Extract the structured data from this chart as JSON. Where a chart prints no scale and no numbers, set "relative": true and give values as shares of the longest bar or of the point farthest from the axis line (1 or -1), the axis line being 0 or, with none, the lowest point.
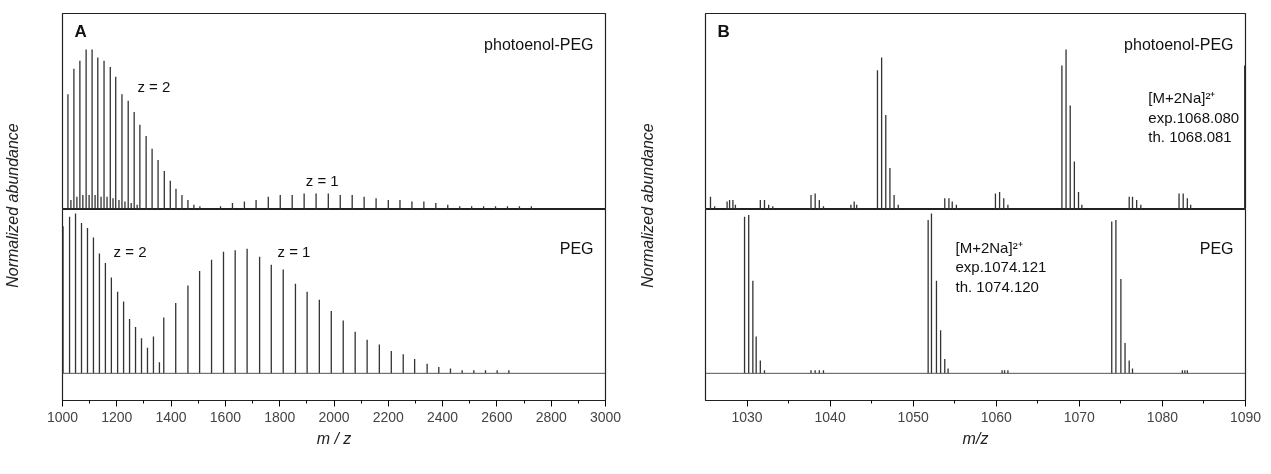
{
  "chart_data": [
    {
      "type": "bar",
      "title": "A",
      "ylabel": "Normalized abundance",
      "relative": true,
      "xlim": [
        1000,
        3000
      ],
      "tick_labels": false,
      "series": [
        {
          "name": "photoenol-PEG",
          "color": "#333333",
          "x": [
            1020,
            1031,
            1042,
            1053,
            1064,
            1075,
            1087,
            1098,
            1109,
            1120,
            1130,
            1142,
            1153,
            1164,
            1176,
            1186,
            1196,
            1208,
            1219,
            1230,
            1242,
            1253,
            1264,
            1275,
            1285,
            1308,
            1330,
            1352,
            1375,
            1397,
            1418,
            1440,
            1462,
            1484,
            1506,
            1582,
            1626,
            1670,
            1713,
            1758,
            1802,
            1846,
            1890,
            1934,
            1979,
            2023,
            2067,
            2111,
            2155,
            2200,
            2243,
            2287,
            2331,
            2375,
            2419,
            2463,
            2507,
            2551,
            2595,
            2639,
            2683,
            2727
          ],
          "values": [
            0.72,
            0.06,
            0.88,
            0.08,
            0.93,
            0.09,
            1,
            0.09,
            1,
            0.09,
            0.95,
            0.08,
            0.93,
            0.08,
            0.89,
            0.07,
            0.83,
            0.06,
            0.72,
            0.05,
            0.68,
            0.04,
            0.61,
            0.03,
            0.53,
            0.46,
            0.38,
            0.31,
            0.24,
            0.18,
            0.13,
            0.09,
            0.06,
            0.03,
            0.02,
            0.02,
            0.04,
            0.05,
            0.06,
            0.08,
            0.09,
            0.09,
            0.1,
            0.1,
            0.1,
            0.09,
            0.09,
            0.08,
            0.07,
            0.06,
            0.06,
            0.05,
            0.05,
            0.04,
            0.03,
            0.02,
            0.02,
            0.02,
            0.02,
            0.02,
            0.02,
            0.02
          ]
        }
      ],
      "annotations": [
        "z = 2",
        "z = 1"
      ]
    },
    {
      "type": "bar",
      "xlabel": "m / z",
      "relative": true,
      "xlim": [
        1000,
        3000
      ],
      "xticks": [
        1000,
        1200,
        1400,
        1600,
        1800,
        2000,
        2200,
        2400,
        2600,
        2800,
        3000
      ],
      "tick_labels": "x",
      "series": [
        {
          "name": "PEG",
          "color": "#333333",
          "x": [
            1002,
            1026,
            1048,
            1070,
            1092,
            1114,
            1136,
            1158,
            1180,
            1203,
            1225,
            1247,
            1269,
            1291,
            1313,
            1335,
            1357,
            1373,
            1417,
            1462,
            1505,
            1549,
            1593,
            1636,
            1680,
            1726,
            1769,
            1813,
            1858,
            1901,
            1946,
            1990,
            2034,
            2078,
            2122,
            2167,
            2211,
            2255,
            2297,
            2343,
            2386,
            2429,
            2472,
            2515,
            2558,
            2601,
            2644
          ],
          "values": [
            0.92,
            0.98,
            1,
            0.94,
            0.91,
            0.85,
            0.75,
            0.69,
            0.6,
            0.51,
            0.45,
            0.34,
            0.29,
            0.22,
            0.16,
            0.23,
            0.07,
            0.35,
            0.44,
            0.55,
            0.64,
            0.71,
            0.76,
            0.77,
            0.78,
            0.73,
            0.68,
            0.65,
            0.56,
            0.51,
            0.46,
            0.39,
            0.33,
            0.26,
            0.21,
            0.18,
            0.14,
            0.12,
            0.09,
            0.06,
            0.04,
            0.03,
            0.02,
            0.02,
            0.02,
            0.02,
            0.02
          ]
        }
      ],
      "ref_lines": [
        {
          "axis": "y",
          "value": 0,
          "color": "#555555"
        }
      ],
      "annotations": [
        "z = 2",
        "z = 1"
      ]
    },
    {
      "type": "bar",
      "title": "B",
      "ylabel": "Normalized abundance",
      "relative": true,
      "xlim": [
        1025,
        1090
      ],
      "tick_labels": false,
      "series": [
        {
          "name": "photoenol-PEG",
          "color": "#333333",
          "x": [
            1025.6,
            1026.1,
            1027.6,
            1027.9,
            1028.3,
            1028.6,
            1028.9,
            1031.6,
            1032.1,
            1032.6,
            1033.1,
            1037.7,
            1038.2,
            1038.7,
            1039.2,
            1042.5,
            1042.9,
            1043.2,
            1043.5,
            1045.7,
            1046.2,
            1046.7,
            1047.2,
            1047.7,
            1048.2,
            1053.8,
            1054.3,
            1054.7,
            1055.2,
            1059.9,
            1060.4,
            1060.9,
            1061.4,
            1067.9,
            1068.4,
            1068.9,
            1069.4,
            1069.9,
            1070.3,
            1076.0,
            1076.4,
            1076.9,
            1077.4,
            1082.0,
            1082.5,
            1083.0,
            1083.4,
            1089.9
          ],
          "values": [
            0.08,
            0.02,
            0.05,
            0.06,
            0.06,
            0.03,
            0.01,
            0.06,
            0.06,
            0.03,
            0.02,
            0.09,
            0.1,
            0.06,
            0.02,
            0.03,
            0.05,
            0.03,
            0.01,
            0.87,
            0.95,
            0.59,
            0.26,
            0.09,
            0.03,
            0.07,
            0.07,
            0.05,
            0.03,
            0.1,
            0.11,
            0.07,
            0.03,
            0.9,
            1,
            0.65,
            0.3,
            0.11,
            0.03,
            0.08,
            0.08,
            0.06,
            0.03,
            0.1,
            0.1,
            0.07,
            0.03,
            0.9
          ]
        }
      ],
      "annotations": [
        "[M+2Na]²⁺\nexp.1068.080\nth. 1068.081"
      ]
    },
    {
      "type": "bar",
      "xlabel": "m/z",
      "relative": true,
      "xlim": [
        1025,
        1090
      ],
      "xticks": [
        1030,
        1040,
        1050,
        1060,
        1070,
        1080,
        1090
      ],
      "tick_labels": "x",
      "series": [
        {
          "name": "PEG",
          "color": "#333333",
          "x": [
            1029.7,
            1030.2,
            1030.7,
            1031.1,
            1031.6,
            1032.1,
            1037.7,
            1038.2,
            1038.7,
            1039.2,
            1051.8,
            1052.2,
            1052.8,
            1053.3,
            1053.8,
            1054.2,
            1060.7,
            1061.0,
            1061.4,
            1073.9,
            1074.4,
            1075.0,
            1075.5,
            1076.0,
            1076.4,
            1082.4,
            1082.7,
            1083.0
          ],
          "values": [
            0.98,
            0.99,
            0.58,
            0.23,
            0.08,
            0.02,
            0.02,
            0.02,
            0.02,
            0.02,
            0.96,
            1,
            0.58,
            0.27,
            0.09,
            0.03,
            0.02,
            0.02,
            0.02,
            0.95,
            0.96,
            0.59,
            0.19,
            0.08,
            0.03,
            0.02,
            0.02,
            0.02
          ]
        }
      ],
      "ref_lines": [
        {
          "axis": "y",
          "value": 0,
          "color": "#555555"
        }
      ],
      "annotations": [
        "[M+2Na]²⁺\nexp.1074.121\nth. 1074.120"
      ]
    }
  ]
}
